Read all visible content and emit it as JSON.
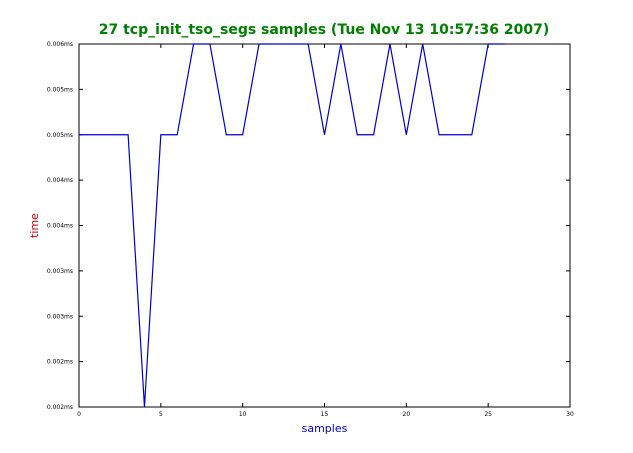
{
  "chart_data": {
    "type": "line",
    "title": "27 tcp_init_tso_segs samples (Tue Nov 13 10:57:36 2007)",
    "xlabel": "samples",
    "ylabel": "time",
    "xlim": [
      0,
      30
    ],
    "ylim": [
      0.002,
      0.006
    ],
    "x_ticks": [
      0,
      5,
      10,
      15,
      20,
      25,
      30
    ],
    "y_ticks": [
      {
        "value": 0.002,
        "label": "0.002ms"
      },
      {
        "value": 0.0025,
        "label": "0.002ms"
      },
      {
        "value": 0.003,
        "label": "0.003ms"
      },
      {
        "value": 0.0035,
        "label": "0.003ms"
      },
      {
        "value": 0.004,
        "label": "0.004ms"
      },
      {
        "value": 0.0045,
        "label": "0.004ms"
      },
      {
        "value": 0.005,
        "label": "0.005ms"
      },
      {
        "value": 0.0055,
        "label": "0.005ms"
      },
      {
        "value": 0.006,
        "label": "0.006ms"
      }
    ],
    "grid": false,
    "series": [
      {
        "x": [
          0,
          1,
          2,
          3,
          4,
          5,
          6,
          7,
          8,
          9,
          10,
          11,
          12,
          13,
          14,
          15,
          16,
          17,
          18,
          19,
          20,
          21,
          22,
          23,
          24,
          25,
          26
        ],
        "values": [
          0.005,
          0.005,
          0.005,
          0.005,
          0.002,
          0.005,
          0.005,
          0.006,
          0.006,
          0.005,
          0.005,
          0.006,
          0.006,
          0.006,
          0.006,
          0.005,
          0.006,
          0.005,
          0.005,
          0.006,
          0.005,
          0.006,
          0.005,
          0.005,
          0.005,
          0.006,
          0.006
        ]
      }
    ]
  },
  "colors": {
    "title": "#008000",
    "xlabel": "#0000cc",
    "ylabel": "#cc0000",
    "line": "#0000cc",
    "axes": "#000000"
  }
}
